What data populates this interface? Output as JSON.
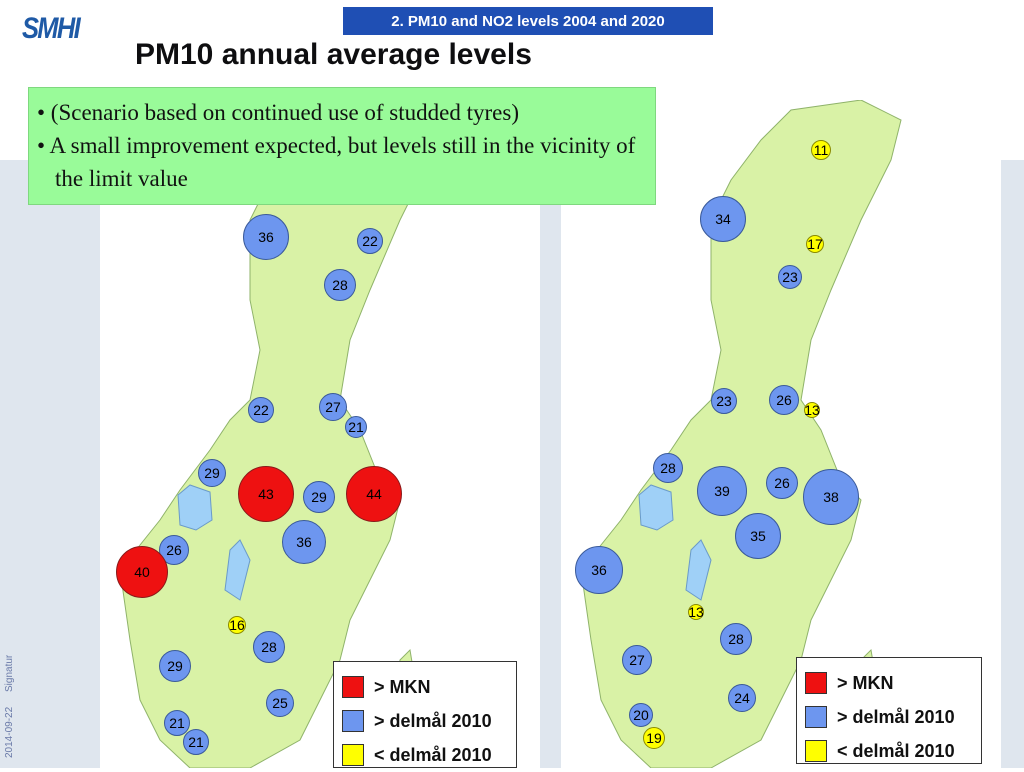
{
  "header": {
    "logo_text": "SMHI",
    "section_tag": "2. PM10 and NO2 levels 2004 and 2020",
    "title": "PM10 annual average levels"
  },
  "bullets": [
    "• (Scenario based on continued use of studded tyres)",
    "• A small improvement expected, but levels still in the vicinity of the limit value"
  ],
  "maps": {
    "left": {
      "markers": [
        {
          "value": "36",
          "category": "blue"
        },
        {
          "value": "22",
          "category": "blue"
        },
        {
          "value": "28",
          "category": "blue"
        },
        {
          "value": "22",
          "category": "blue"
        },
        {
          "value": "27",
          "category": "blue"
        },
        {
          "value": "21",
          "category": "blue"
        },
        {
          "value": "29",
          "category": "blue"
        },
        {
          "value": "43",
          "category": "red"
        },
        {
          "value": "29",
          "category": "blue"
        },
        {
          "value": "44",
          "category": "red"
        },
        {
          "value": "36",
          "category": "blue"
        },
        {
          "value": "26",
          "category": "blue"
        },
        {
          "value": "40",
          "category": "red"
        },
        {
          "value": "16",
          "category": "yellow"
        },
        {
          "value": "28",
          "category": "blue"
        },
        {
          "value": "29",
          "category": "blue"
        },
        {
          "value": "25",
          "category": "blue"
        },
        {
          "value": "21",
          "category": "blue"
        },
        {
          "value": "21",
          "category": "blue"
        }
      ],
      "legend": [
        {
          "label": "> MKN",
          "color": "#ee1111"
        },
        {
          "label": "> delmål 2010",
          "color": "#6d96ef"
        },
        {
          "label": "< delmål 2010",
          "color": "#ffff00"
        }
      ]
    },
    "right": {
      "markers": [
        {
          "value": "11",
          "category": "yellow"
        },
        {
          "value": "34",
          "category": "blue"
        },
        {
          "value": "17",
          "category": "yellow"
        },
        {
          "value": "23",
          "category": "blue"
        },
        {
          "value": "23",
          "category": "blue"
        },
        {
          "value": "26",
          "category": "blue"
        },
        {
          "value": "13",
          "category": "yellow"
        },
        {
          "value": "28",
          "category": "blue"
        },
        {
          "value": "39",
          "category": "blue"
        },
        {
          "value": "26",
          "category": "blue"
        },
        {
          "value": "38",
          "category": "blue"
        },
        {
          "value": "35",
          "category": "blue"
        },
        {
          "value": "36",
          "category": "blue"
        },
        {
          "value": "13",
          "category": "yellow"
        },
        {
          "value": "28",
          "category": "blue"
        },
        {
          "value": "27",
          "category": "blue"
        },
        {
          "value": "24",
          "category": "blue"
        },
        {
          "value": "20",
          "category": "blue"
        },
        {
          "value": "19",
          "category": "yellow"
        }
      ],
      "legend": [
        {
          "label": "> MKN",
          "color": "#ee1111"
        },
        {
          "label": "> delmål 2010",
          "color": "#6d96ef"
        },
        {
          "label": "< delmål 2010",
          "color": "#ffff00"
        }
      ]
    }
  },
  "footer": {
    "date": "2014-09-22",
    "signature": "Signatur"
  },
  "colors": {
    "land": "#d9f2a6",
    "lake": "#9fd0f7",
    "above_mkn": "#ee1111",
    "above_target": "#6d96ef",
    "below_target": "#ffff00",
    "tag_bg": "#1f4fb4"
  }
}
